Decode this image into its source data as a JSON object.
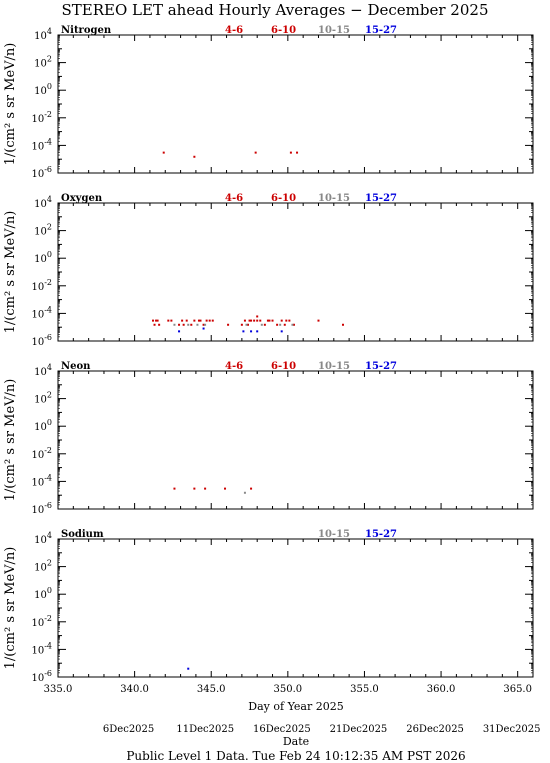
{
  "title": "STEREO LET ahead Hourly Averages − December 2025",
  "y_axis_label": "1/(cm² s sr MeV/n)",
  "x_axis_label": "Day of Year 2025",
  "date_axis_label": "Date",
  "footer": "Public Level 1 Data. Tue Feb 24 10:12:35 AM PST 2026",
  "x_ticks": [
    "335.0",
    "340.0",
    "345.0",
    "350.0",
    "355.0",
    "360.0",
    "365.0"
  ],
  "date_ticks": [
    "6Dec2025",
    "11Dec2025",
    "16Dec2025",
    "21Dec2025",
    "26Dec2025",
    "31Dec2025"
  ],
  "y_ticks": [
    {
      "base": "10",
      "exp": "4"
    },
    {
      "base": "10",
      "exp": "2"
    },
    {
      "base": "10",
      "exp": "0"
    },
    {
      "base": "10",
      "exp": "-2"
    },
    {
      "base": "10",
      "exp": "-4"
    },
    {
      "base": "10",
      "exp": "-6"
    }
  ],
  "colors": {
    "red": "#cc0000",
    "gray": "#888888",
    "blue": "#0000dd",
    "axis": "#000000"
  },
  "chart_data": [
    {
      "type": "scatter",
      "title": "Nitrogen",
      "xlim": [
        335,
        366
      ],
      "ylim_exp": [
        -6,
        4
      ],
      "yscale": "log",
      "legend": [
        "4-6",
        "6-10",
        "10-15",
        "15-27"
      ],
      "series": [
        {
          "name": "4-6",
          "color": "#cc0000",
          "points": [
            [
              341.9,
              3e-05
            ],
            [
              343.9,
              1.5e-05
            ],
            [
              347.9,
              3e-05
            ],
            [
              350.2,
              3e-05
            ],
            [
              350.6,
              3e-05
            ]
          ]
        },
        {
          "name": "6-10",
          "color": "#cc0000",
          "points": []
        },
        {
          "name": "10-15",
          "color": "#888888",
          "points": []
        },
        {
          "name": "15-27",
          "color": "#0000dd",
          "points": []
        }
      ]
    },
    {
      "type": "scatter",
      "title": "Oxygen",
      "xlim": [
        335,
        366
      ],
      "ylim_exp": [
        -6,
        4
      ],
      "yscale": "log",
      "legend": [
        "4-6",
        "6-10",
        "10-15",
        "15-27"
      ],
      "series": [
        {
          "name": "4-6",
          "color": "#cc0000",
          "points": [
            [
              341.2,
              3e-05
            ],
            [
              341.3,
              1.5e-05
            ],
            [
              341.4,
              3e-05
            ],
            [
              341.6,
              1.5e-05
            ],
            [
              342.2,
              3e-05
            ],
            [
              342.4,
              3e-05
            ],
            [
              342.9,
              1.5e-05
            ],
            [
              343.1,
              3e-05
            ],
            [
              343.4,
              3e-05
            ],
            [
              343.7,
              1.5e-05
            ],
            [
              343.9,
              3e-05
            ],
            [
              344.2,
              3e-05
            ],
            [
              344.5,
              1.5e-05
            ],
            [
              344.7,
              3e-05
            ],
            [
              344.9,
              3e-05
            ],
            [
              345.1,
              3e-05
            ],
            [
              346.1,
              1.5e-05
            ],
            [
              347.0,
              1.5e-05
            ],
            [
              347.2,
              3e-05
            ],
            [
              347.4,
              1.5e-05
            ],
            [
              347.6,
              3e-05
            ],
            [
              347.8,
              3e-05
            ],
            [
              348.0,
              3e-05
            ],
            [
              348.2,
              3e-05
            ],
            [
              348.5,
              1.5e-05
            ],
            [
              348.7,
              3e-05
            ],
            [
              349.0,
              3e-05
            ],
            [
              349.3,
              1.5e-05
            ],
            [
              349.6,
              3e-05
            ],
            [
              349.9,
              3e-05
            ],
            [
              350.1,
              3e-05
            ],
            [
              350.4,
              1.5e-05
            ],
            [
              352.0,
              3e-05
            ],
            [
              353.6,
              1.5e-05
            ]
          ]
        },
        {
          "name": "6-10",
          "color": "#cc0000",
          "points": [
            [
              341.5,
              3e-05
            ],
            [
              343.2,
              1.5e-05
            ],
            [
              344.3,
              3e-05
            ],
            [
              347.5,
              3e-05
            ],
            [
              348.0,
              6e-05
            ],
            [
              348.8,
              3e-05
            ],
            [
              349.8,
              1.5e-05
            ]
          ]
        },
        {
          "name": "10-15",
          "color": "#888888",
          "points": [
            [
              342.6,
              1.5e-05
            ],
            [
              343.5,
              1.5e-05
            ],
            [
              344.1,
              1.5e-05
            ],
            [
              344.6,
              1.5e-05
            ],
            [
              347.3,
              1.5e-05
            ],
            [
              348.3,
              1.5e-05
            ],
            [
              349.5,
              1.5e-05
            ],
            [
              350.3,
              1.5e-05
            ]
          ]
        },
        {
          "name": "15-27",
          "color": "#0000dd",
          "points": [
            [
              342.9,
              5e-06
            ],
            [
              344.5,
              8e-06
            ],
            [
              347.1,
              5e-06
            ],
            [
              347.6,
              5e-06
            ],
            [
              348.0,
              5e-06
            ],
            [
              349.6,
              5e-06
            ]
          ]
        }
      ]
    },
    {
      "type": "scatter",
      "title": "Neon",
      "xlim": [
        335,
        366
      ],
      "ylim_exp": [
        -6,
        4
      ],
      "yscale": "log",
      "legend": [
        "4-6",
        "6-10",
        "10-15",
        "15-27"
      ],
      "series": [
        {
          "name": "4-6",
          "color": "#cc0000",
          "points": [
            [
              342.6,
              3e-05
            ],
            [
              343.9,
              3e-05
            ],
            [
              344.6,
              3e-05
            ],
            [
              345.9,
              3e-05
            ],
            [
              347.6,
              3e-05
            ]
          ]
        },
        {
          "name": "6-10",
          "color": "#cc0000",
          "points": []
        },
        {
          "name": "10-15",
          "color": "#888888",
          "points": [
            [
              347.2,
              1.5e-05
            ]
          ]
        },
        {
          "name": "15-27",
          "color": "#0000dd",
          "points": []
        }
      ]
    },
    {
      "type": "scatter",
      "title": "Sodium",
      "xlim": [
        335,
        366
      ],
      "ylim_exp": [
        -6,
        4
      ],
      "yscale": "log",
      "legend": [
        "10-15",
        "15-27"
      ],
      "series": [
        {
          "name": "10-15",
          "color": "#888888",
          "points": []
        },
        {
          "name": "15-27",
          "color": "#0000dd",
          "points": [
            [
              343.5,
              4e-06
            ]
          ]
        }
      ]
    }
  ]
}
